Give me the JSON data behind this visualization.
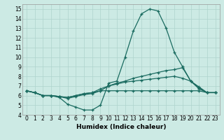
{
  "xlabel": "Humidex (Indice chaleur)",
  "background_color": "#cceae4",
  "grid_color": "#aed4cc",
  "line_color": "#1a6b60",
  "xlim": [
    -0.5,
    23.5
  ],
  "ylim": [
    4,
    15.5
  ],
  "xticks": [
    0,
    1,
    2,
    3,
    4,
    5,
    6,
    7,
    8,
    9,
    10,
    11,
    12,
    13,
    14,
    15,
    16,
    17,
    18,
    19,
    20,
    21,
    22,
    23
  ],
  "yticks": [
    4,
    5,
    6,
    7,
    8,
    9,
    10,
    11,
    12,
    13,
    14,
    15
  ],
  "series": [
    [
      6.5,
      6.3,
      6.0,
      6.0,
      5.8,
      5.1,
      4.8,
      4.5,
      4.5,
      5.0,
      7.3,
      7.5,
      10.0,
      12.7,
      14.5,
      15.0,
      14.8,
      13.0,
      10.5,
      9.0,
      7.5,
      6.7,
      6.3,
      6.3
    ],
    [
      6.5,
      6.3,
      6.0,
      6.0,
      5.9,
      5.7,
      5.9,
      6.1,
      6.2,
      6.5,
      7.0,
      7.3,
      7.5,
      7.8,
      8.0,
      8.2,
      8.4,
      8.6,
      8.7,
      8.9,
      7.5,
      6.9,
      6.3,
      6.3
    ],
    [
      6.5,
      6.3,
      6.0,
      6.0,
      5.9,
      5.8,
      6.0,
      6.2,
      6.3,
      6.7,
      7.0,
      7.2,
      7.4,
      7.5,
      7.6,
      7.7,
      7.8,
      7.9,
      8.0,
      7.8,
      7.5,
      6.8,
      6.3,
      6.3
    ],
    [
      6.5,
      6.3,
      6.0,
      6.0,
      5.9,
      5.8,
      6.0,
      6.2,
      6.3,
      6.5,
      6.5,
      6.5,
      6.5,
      6.5,
      6.5,
      6.5,
      6.5,
      6.5,
      6.5,
      6.5,
      6.5,
      6.5,
      6.3,
      6.3
    ]
  ],
  "xlabel_fontsize": 6.5,
  "tick_fontsize": 5.5
}
